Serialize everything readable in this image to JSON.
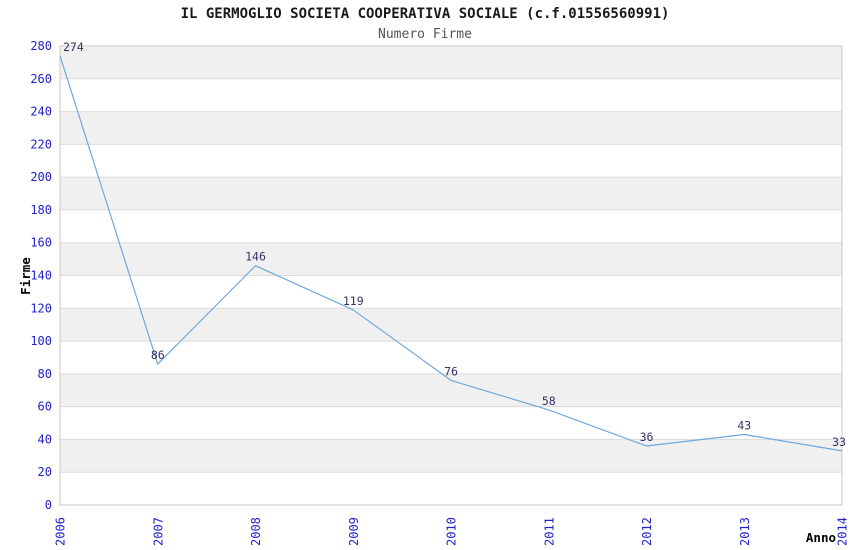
{
  "header": {
    "title": "IL GERMOGLIO SOCIETA COOPERATIVA SOCIALE (c.f.01556560991)",
    "subtitle": "Numero Firme"
  },
  "chart_data": {
    "type": "line",
    "title": "IL GERMOGLIO SOCIETA COOPERATIVA SOCIALE (c.f.01556560991)",
    "subtitle": "Numero Firme",
    "categories": [
      "2006",
      "2007",
      "2008",
      "2009",
      "2010",
      "2011",
      "2012",
      "2013",
      "2014"
    ],
    "values": [
      274,
      86,
      146,
      119,
      76,
      58,
      36,
      43,
      33
    ],
    "value_labels": [
      "274",
      "86",
      "146",
      "119",
      "76",
      "58",
      "36",
      "43",
      "33"
    ],
    "xlabel": "Anno",
    "ylabel": "Firme",
    "ylim": [
      0,
      280
    ],
    "ytick_step": 20,
    "yticks": [
      0,
      20,
      40,
      60,
      80,
      100,
      120,
      140,
      160,
      180,
      200,
      220,
      240,
      260,
      280
    ],
    "grid": true,
    "alternating_bands": true,
    "legend_position": "none",
    "colors": {
      "title": "#1a1a1a",
      "subtitle": "#555555",
      "tick_label": "#2222cc",
      "value_label": "#333366",
      "line": "#70a8dc",
      "band": "#f0f0f0",
      "gridline": "#dcdcdc",
      "plot_border": "#c9c9c9",
      "axis_title": "#000000",
      "background": "#ffffff"
    }
  }
}
